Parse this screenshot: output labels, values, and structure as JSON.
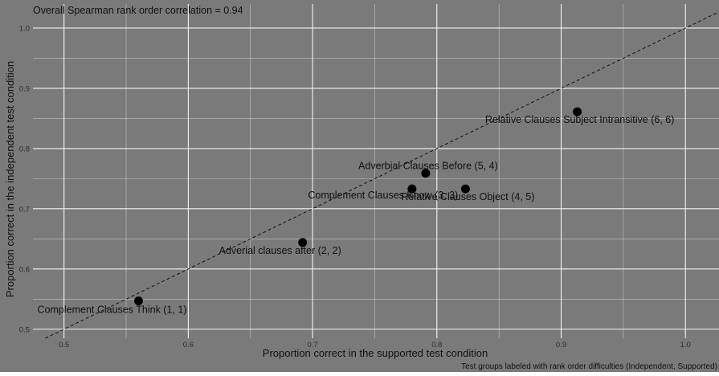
{
  "chart_data": {
    "type": "scatter",
    "title": "Overall Spearman rank order correlation = 0.94",
    "xlabel": "Proportion correct in the supported test condition",
    "ylabel": "Proportion correct in the independent test condition",
    "caption": "Test groups labeled with rank order difficulties (Independent, Supported)",
    "xlim": [
      0.475,
      1.027
    ],
    "ylim": [
      0.485,
      1.04
    ],
    "x_ticks": [
      "0.5",
      "0.6",
      "0.7",
      "0.8",
      "0.9",
      "1.0"
    ],
    "y_ticks": [
      "0.5",
      "0.6",
      "0.7",
      "0.8",
      "0.9",
      "1.0"
    ],
    "grid": true,
    "reference_line": {
      "type": "identity",
      "style": "dashed"
    },
    "points": [
      {
        "label": "Complement Clauses Think (1, 1)",
        "x": 0.56,
        "y": 0.547
      },
      {
        "label": "Adverial clauses after (2, 2)",
        "x": 0.692,
        "y": 0.644
      },
      {
        "label": "Complement Clauses Know (3, 3)",
        "x": 0.78,
        "y": 0.733
      },
      {
        "label": "Relative Clauses Object (4, 5)",
        "x": 0.823,
        "y": 0.733
      },
      {
        "label": "Adverbial Clauses Before (5, 4)",
        "x": 0.791,
        "y": 0.759
      },
      {
        "label": "Relative Clauses Subject Intransitive (6, 6)",
        "x": 0.913,
        "y": 0.861
      }
    ],
    "colors": {
      "panel": "#7a7a7a",
      "grid": "#f4f4f4",
      "point": "#000000",
      "text": "#111111",
      "axis_text": "#2e2e2e"
    }
  }
}
